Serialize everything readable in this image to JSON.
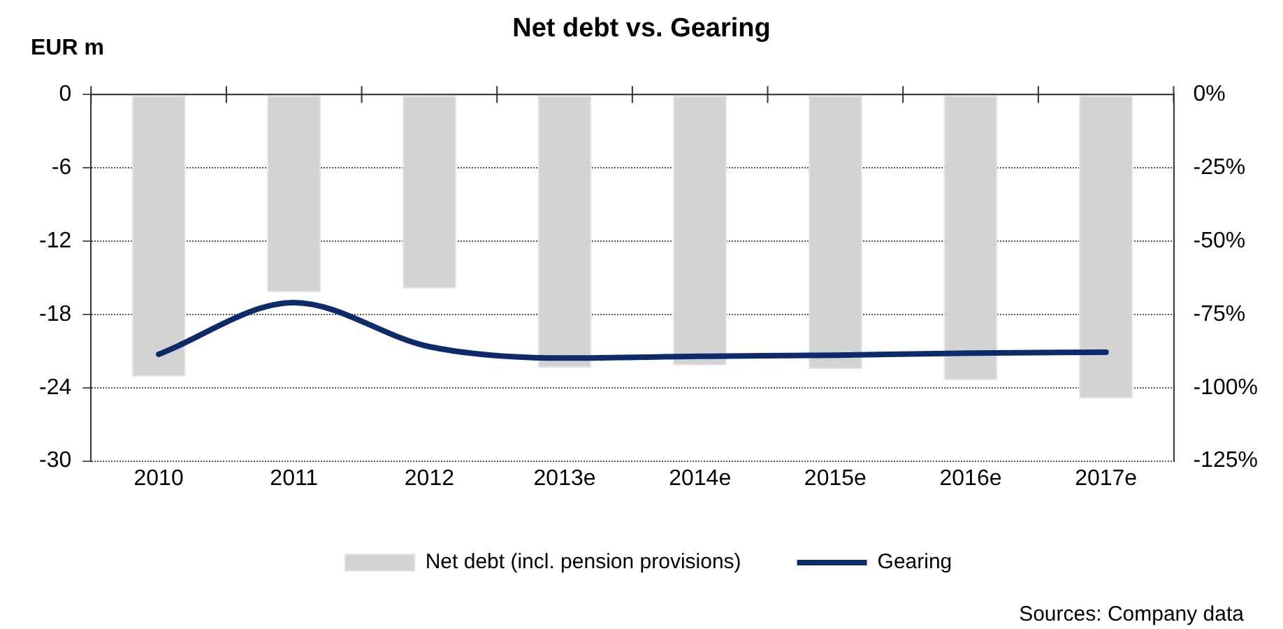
{
  "chart_data": {
    "type": "bar",
    "title": "Net debt vs. Gearing",
    "ylabel": "EUR m",
    "categories": [
      "2010",
      "2011",
      "2012",
      "2013e",
      "2014e",
      "2015e",
      "2016e",
      "2017e"
    ],
    "series": [
      {
        "name": "Net debt (incl. pension provisions)",
        "color": "#d3d3d3",
        "values": [
          -23.1,
          -16.2,
          -15.9,
          -22.4,
          -22.2,
          -22.5,
          -23.4,
          -24.9
        ]
      },
      {
        "name": "Gearing",
        "type": "line",
        "axis": "y2",
        "color": "#0d2b6b",
        "values": [
          -88.6,
          -71,
          -86,
          -89.9,
          -89.3,
          -88.9,
          -88.2,
          -87.9
        ]
      }
    ],
    "ylim": [
      -30,
      0
    ],
    "yticks": [
      -30,
      -24,
      -18,
      -12,
      -6,
      0
    ],
    "y2lim": [
      -125,
      0
    ],
    "y2ticks": [
      {
        "value": -125,
        "label": "-125%"
      },
      {
        "value": -100,
        "label": "-100%"
      },
      {
        "value": -75,
        "label": "-75%"
      },
      {
        "value": -50,
        "label": "-50%"
      },
      {
        "value": -25,
        "label": "-25%"
      },
      {
        "value": 0,
        "label": "0%"
      }
    ],
    "grid": "y",
    "legend": "bottom",
    "marker": "none",
    "line_style": "solid",
    "annotations": [
      "Sources: Company data"
    ]
  }
}
